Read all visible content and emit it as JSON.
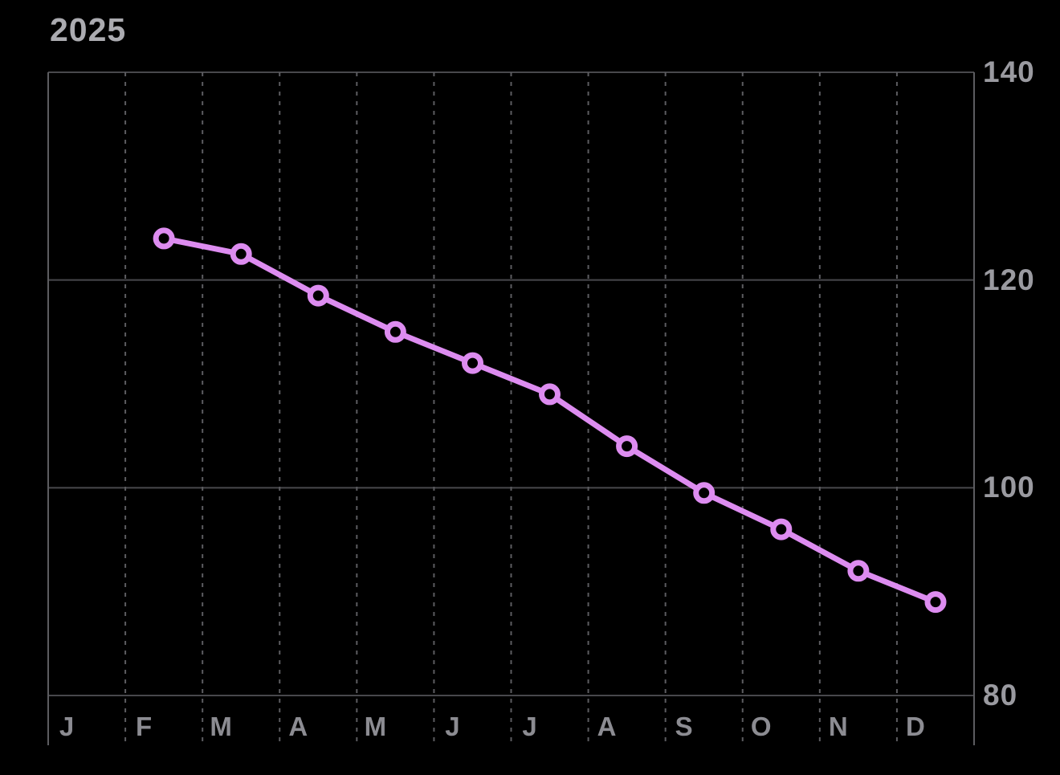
{
  "header": {
    "year": "2025"
  },
  "colors": {
    "background": "#000000",
    "line": "#DD8CF0",
    "marker_fill": "#000000",
    "h_grid": "#48484C",
    "v_grid": "#5C5C60",
    "title_text": "#ABABB0",
    "y_label_text": "#9A9AA0",
    "x_label_text": "#8C8C92"
  },
  "chart_data": {
    "type": "line",
    "title": "2025",
    "x_labels": [
      "J",
      "F",
      "M",
      "A",
      "M",
      "J",
      "J",
      "A",
      "S",
      "O",
      "N",
      "D"
    ],
    "series": [
      {
        "name": "2025",
        "values": [
          null,
          124,
          122.5,
          118.5,
          115,
          112,
          109,
          104,
          99.5,
          96,
          92,
          89
        ]
      }
    ],
    "ylim": [
      80,
      140
    ],
    "yticks": [
      140,
      120,
      100,
      80
    ],
    "xlabel": "",
    "ylabel": "",
    "grid": "on",
    "legend": "none",
    "marker": "open-circle",
    "line_color": "#DD8CF0"
  }
}
